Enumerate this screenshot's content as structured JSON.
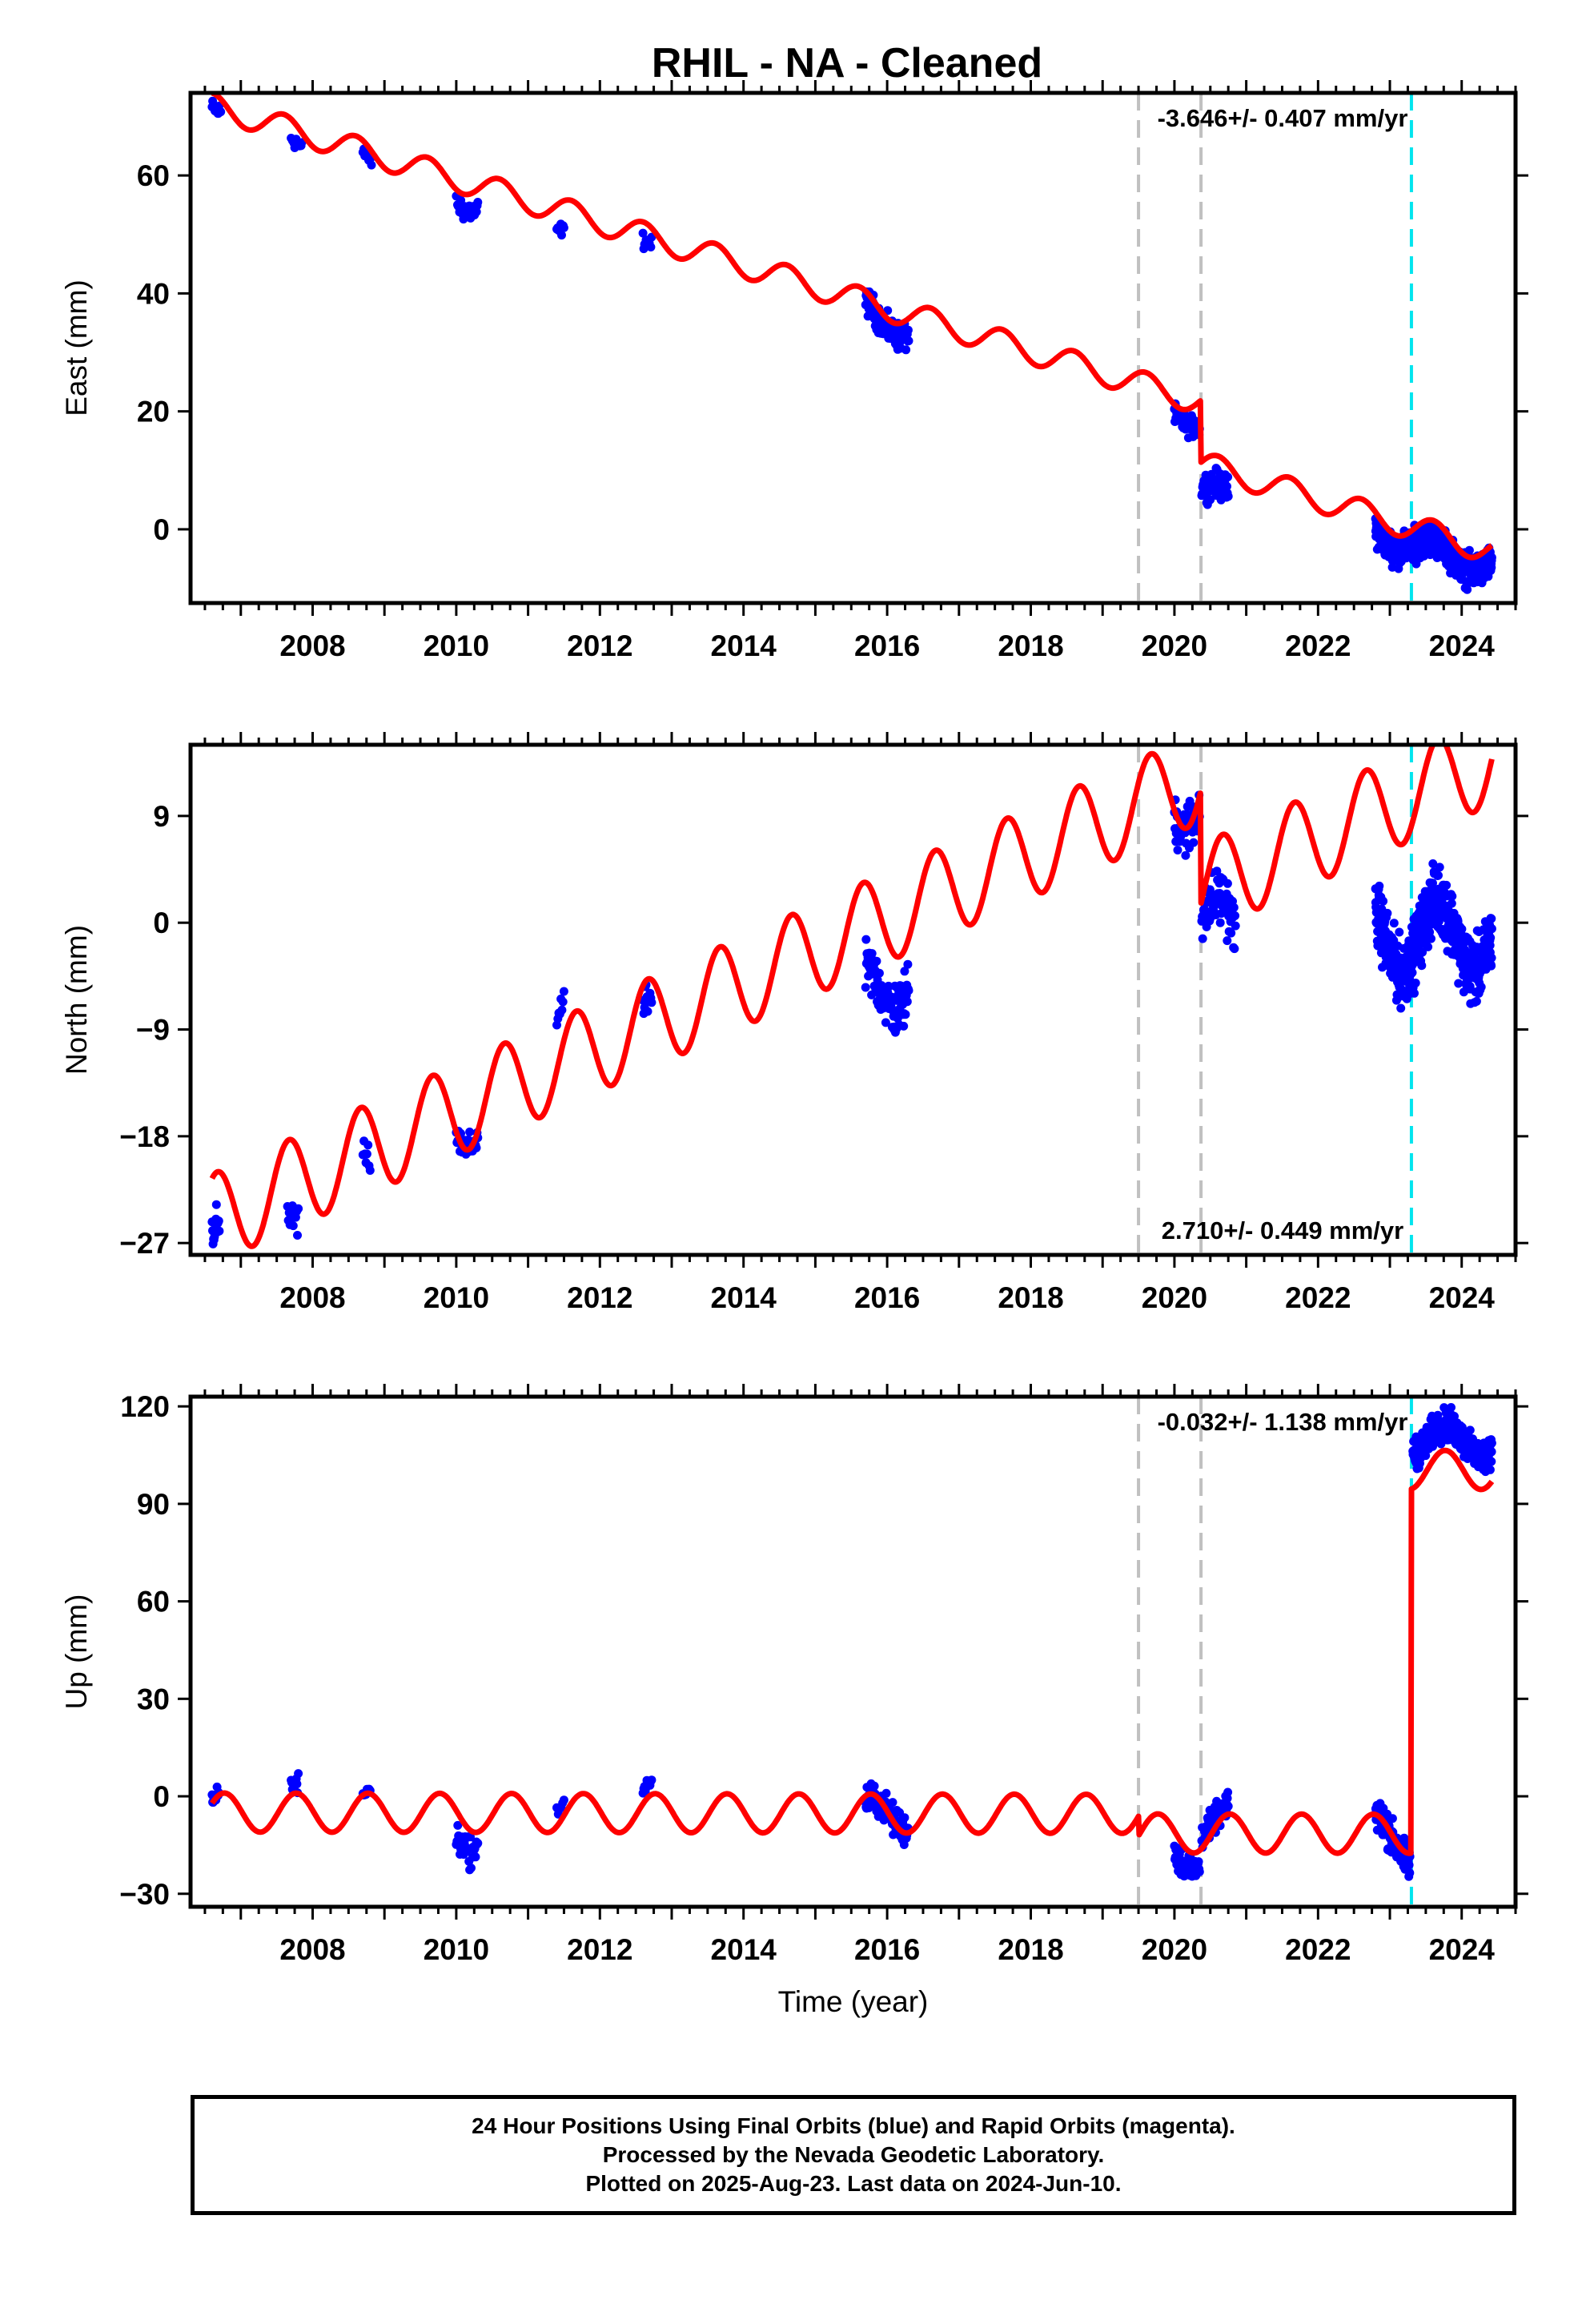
{
  "title": "RHIL  - NA - Cleaned",
  "colors": {
    "observations": "#0000ff",
    "model": "#ff0000",
    "event_gray": "#c0c0c0",
    "event_cyan": "#00e5ee",
    "frame": "#000000"
  },
  "chart_data": [
    {
      "type": "scatter",
      "component": "East",
      "title": "RHIL  - NA - Cleaned",
      "xlabel": "",
      "ylabel": "East (mm)",
      "xlim": [
        2006.3,
        2024.75
      ],
      "ylim": [
        -12.5,
        74
      ],
      "x_ticks": [
        2008,
        2010,
        2012,
        2014,
        2016,
        2018,
        2020,
        2022,
        2024
      ],
      "x_tick_labels": [
        "2008",
        "2010",
        "2012",
        "2014",
        "2016",
        "2018",
        "2020",
        "2022",
        "2024"
      ],
      "y_ticks": [
        0,
        20,
        40,
        60
      ],
      "y_tick_labels": [
        "0",
        "20",
        "40",
        "60"
      ],
      "rate_label": "-3.646+/- 0.407 mm/yr",
      "rate_label_position": "top-right",
      "event_lines_gray": [
        2019.5,
        2020.37
      ],
      "event_lines_cyan": [
        2023.3
      ],
      "model_breaks": [
        {
          "x": 2020.37,
          "offset": -10.5
        },
        {
          "x": 2023.3,
          "offset": 0
        }
      ],
      "model": {
        "start": 2006.6,
        "end": 2024.42,
        "x0": 2006.6,
        "y0": 71.8,
        "rate": -3.646,
        "annual_amp": 2.2,
        "annual_phase": 0.35
      },
      "series": [
        {
          "name": "Final Orbits",
          "segments": [
            {
              "start": 2006.6,
              "end": 2006.72,
              "y0": 71.5,
              "rate": -3.6,
              "amp": 2.2,
              "jitter": 2.0,
              "n": 16
            },
            {
              "start": 2007.7,
              "end": 2007.85,
              "y0": 66.5,
              "rate": -3.6,
              "amp": 2.2,
              "jitter": 2.0,
              "n": 16
            },
            {
              "start": 2008.7,
              "end": 2008.82,
              "y0": 64.0,
              "rate": -3.6,
              "amp": 2.2,
              "jitter": 1.5,
              "n": 10
            },
            {
              "start": 2010.0,
              "end": 2010.3,
              "y0": 55.5,
              "rate": -8.0,
              "amp": 2.2,
              "jitter": 3.0,
              "n": 34
            },
            {
              "start": 2011.4,
              "end": 2011.5,
              "y0": 50.5,
              "rate": -3.6,
              "amp": 2.2,
              "jitter": 1.6,
              "n": 10
            },
            {
              "start": 2012.6,
              "end": 2012.72,
              "y0": 49.0,
              "rate": -3.6,
              "amp": 2.2,
              "jitter": 2.0,
              "n": 12
            },
            {
              "start": 2015.7,
              "end": 2016.3,
              "y0": 39.0,
              "rate": -7.0,
              "amp": 2.2,
              "jitter": 3.5,
              "n": 95
            },
            {
              "start": 2020.0,
              "end": 2020.35,
              "y0": 19.5,
              "rate": -10.0,
              "amp": 2.2,
              "jitter": 2.5,
              "n": 55
            },
            {
              "start": 2020.38,
              "end": 2020.75,
              "y0": 7.0,
              "rate": -3.6,
              "amp": 2.2,
              "jitter": 3.5,
              "n": 60
            },
            {
              "start": 2022.8,
              "end": 2024.42,
              "y0": 0.0,
              "rate": -3.6,
              "amp": 2.2,
              "jitter": 4.0,
              "n": 520
            }
          ]
        }
      ]
    },
    {
      "type": "scatter",
      "component": "North",
      "xlabel": "",
      "ylabel": "North (mm)",
      "xlim": [
        2006.3,
        2024.75
      ],
      "ylim": [
        -28,
        15
      ],
      "x_ticks": [
        2008,
        2010,
        2012,
        2014,
        2016,
        2018,
        2020,
        2022,
        2024
      ],
      "x_tick_labels": [
        "2008",
        "2010",
        "2012",
        "2014",
        "2016",
        "2018",
        "2020",
        "2022",
        "2024"
      ],
      "y_ticks": [
        -27,
        -18,
        -9,
        0,
        9
      ],
      "y_tick_labels": [
        "−27",
        "−18",
        "−9",
        "0",
        "9"
      ],
      "rate_label": "2.710+/- 0.449 mm/yr",
      "rate_label_position": "bottom-right",
      "event_lines_gray": [
        2019.5,
        2020.37
      ],
      "event_lines_cyan": [
        2023.3
      ],
      "model_breaks": [
        {
          "x": 2020.37,
          "offset": -9.5
        },
        {
          "x": 2023.3,
          "offset": 0
        }
      ],
      "model": {
        "start": 2006.6,
        "end": 2024.42,
        "x0": 2006.6,
        "y0": -25.0,
        "rate": 2.71,
        "annual_amp": 3.8,
        "annual_phase": 0.42
      },
      "series": [
        {
          "name": "Final Orbits",
          "segments": [
            {
              "start": 2006.6,
              "end": 2006.7,
              "y0": -26.0,
              "rate": 2.7,
              "amp": 3.8,
              "jitter": 2.5,
              "n": 16
            },
            {
              "start": 2007.65,
              "end": 2007.8,
              "y0": -25.0,
              "rate": 2.7,
              "amp": 3.8,
              "jitter": 2.0,
              "n": 14
            },
            {
              "start": 2008.7,
              "end": 2008.8,
              "y0": -19.5,
              "rate": 2.7,
              "amp": 3.8,
              "jitter": 1.5,
              "n": 8
            },
            {
              "start": 2010.0,
              "end": 2010.3,
              "y0": -18.0,
              "rate": 2.7,
              "amp": 3.8,
              "jitter": 2.0,
              "n": 30
            },
            {
              "start": 2011.4,
              "end": 2011.5,
              "y0": -8.5,
              "rate": 2.7,
              "amp": 3.8,
              "jitter": 1.0,
              "n": 8
            },
            {
              "start": 2012.6,
              "end": 2012.72,
              "y0": -7.0,
              "rate": 2.7,
              "amp": 3.8,
              "jitter": 2.0,
              "n": 12
            },
            {
              "start": 2015.7,
              "end": 2016.3,
              "y0": -4.0,
              "rate": 6.0,
              "amp": 3.8,
              "jitter": 3.5,
              "n": 95
            },
            {
              "start": 2020.0,
              "end": 2020.35,
              "y0": 9.0,
              "rate": 2.7,
              "amp": 3.8,
              "jitter": 3.5,
              "n": 55
            },
            {
              "start": 2020.38,
              "end": 2020.85,
              "y0": 0.0,
              "rate": -6.0,
              "amp": 3.8,
              "jitter": 3.5,
              "n": 70
            },
            {
              "start": 2022.8,
              "end": 2024.42,
              "y0": 1.0,
              "rate": 0.0,
              "amp": 3.8,
              "jitter": 4.0,
              "n": 520
            }
          ]
        }
      ]
    },
    {
      "type": "scatter",
      "component": "Up",
      "xlabel": "Time (year)",
      "ylabel": "Up (mm)",
      "xlim": [
        2006.3,
        2024.75
      ],
      "ylim": [
        -34,
        123
      ],
      "x_ticks": [
        2008,
        2010,
        2012,
        2014,
        2016,
        2018,
        2020,
        2022,
        2024
      ],
      "x_tick_labels": [
        "2008",
        "2010",
        "2012",
        "2014",
        "2016",
        "2018",
        "2020",
        "2022",
        "2024"
      ],
      "y_ticks": [
        -30,
        0,
        30,
        60,
        90,
        120
      ],
      "y_tick_labels": [
        "−30",
        "0",
        "30",
        "60",
        "90",
        "120"
      ],
      "rate_label": "-0.032+/- 1.138 mm/yr",
      "rate_label_position": "top-right",
      "event_lines_gray": [
        2019.5,
        2020.37
      ],
      "event_lines_cyan": [
        2023.3
      ],
      "model_breaks": [
        {
          "x": 2019.5,
          "offset": -6
        },
        {
          "x": 2020.37,
          "offset": 0
        },
        {
          "x": 2023.3,
          "offset": 112
        }
      ],
      "model": {
        "start": 2006.6,
        "end": 2024.42,
        "x0": 2006.6,
        "y0": -5.0,
        "rate": -0.032,
        "annual_amp": 6.0,
        "annual_phase": 0.52
      },
      "series": [
        {
          "name": "Final Orbits",
          "segments": [
            {
              "start": 2006.6,
              "end": 2006.7,
              "y0": -1.0,
              "rate": 0.0,
              "amp": 6.0,
              "jitter": 4.0,
              "n": 14
            },
            {
              "start": 2007.7,
              "end": 2007.8,
              "y0": 3.0,
              "rate": 0.0,
              "amp": 6.0,
              "jitter": 5.0,
              "n": 12
            },
            {
              "start": 2008.7,
              "end": 2008.8,
              "y0": 1.0,
              "rate": 0.0,
              "amp": 6.0,
              "jitter": 3.0,
              "n": 8
            },
            {
              "start": 2010.0,
              "end": 2010.3,
              "y0": -12.0,
              "rate": 0.0,
              "amp": 6.0,
              "jitter": 7.0,
              "n": 30
            },
            {
              "start": 2011.4,
              "end": 2011.5,
              "y0": -4.0,
              "rate": 0.0,
              "amp": 6.0,
              "jitter": 3.0,
              "n": 6
            },
            {
              "start": 2012.6,
              "end": 2012.72,
              "y0": 2.0,
              "rate": 0.0,
              "amp": 6.0,
              "jitter": 3.0,
              "n": 12
            },
            {
              "start": 2015.7,
              "end": 2016.3,
              "y0": -1.0,
              "rate": 0.0,
              "amp": 6.0,
              "jitter": 7.0,
              "n": 95
            },
            {
              "start": 2020.0,
              "end": 2020.35,
              "y0": -17.0,
              "rate": 0.0,
              "amp": 6.0,
              "jitter": 7.0,
              "n": 55
            },
            {
              "start": 2020.38,
              "end": 2020.75,
              "y0": -12.0,
              "rate": 0.0,
              "amp": 6.0,
              "jitter": 6.0,
              "n": 60
            },
            {
              "start": 2022.8,
              "end": 2023.28,
              "y0": -5.0,
              "rate": -12.0,
              "amp": 6.0,
              "jitter": 8.0,
              "n": 120
            },
            {
              "start": 2023.32,
              "end": 2024.42,
              "y0": 105.0,
              "rate": 0.0,
              "amp": 6.0,
              "jitter": 7.0,
              "n": 340
            }
          ]
        }
      ]
    }
  ],
  "footer": {
    "line1": "24 Hour Positions Using Final Orbits (blue) and Rapid Orbits (magenta).",
    "line2": "Processed by the Nevada Geodetic Laboratory.",
    "line3": "Plotted on 2025-Aug-23. Last data on 2024-Jun-10."
  }
}
